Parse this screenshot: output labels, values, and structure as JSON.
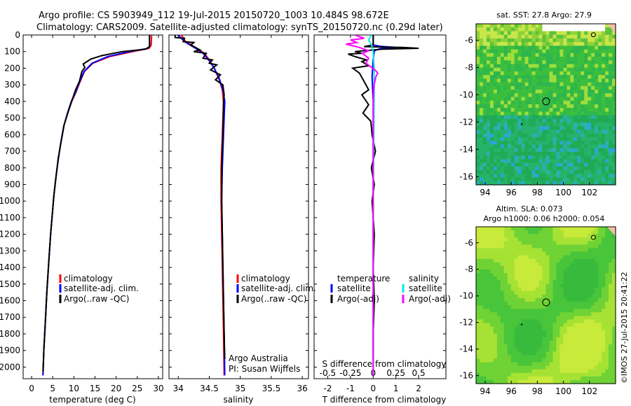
{
  "title_line1": "Argo profile: CS 5903949_112 19-Jul-2015 20150720_1003 10.484S 98.672E",
  "title_line2": "Climatology: CARS2009. Satellite-adjusted climatology: synTS_20150720.nc (0.29d later)",
  "stamp": "©IMOS 27-Jul-2015 20:41:22",
  "colors": {
    "clim": "#ff0000",
    "sat": "#0000ff",
    "argo": "#000000",
    "sal_sat": "#00e5ee",
    "sal_argo": "#ff00ff"
  },
  "chart_data": [
    {
      "type": "line",
      "name": "temperature-profile",
      "xlabel": "temperature (deg C)",
      "ylabel": "",
      "xlim": [
        -2,
        31
      ],
      "ylim": [
        2070,
        0
      ],
      "y_reversed": true,
      "xticks": [
        0,
        5,
        10,
        15,
        20,
        25,
        30
      ],
      "yticks": [
        0,
        100,
        200,
        300,
        400,
        500,
        600,
        700,
        800,
        900,
        1000,
        1100,
        1200,
        1300,
        1400,
        1500,
        1600,
        1700,
        1800,
        1900,
        2000
      ],
      "legend": [
        "climatology",
        "satellite-adj. clim.",
        "Argo(..raw -QC)"
      ],
      "series": [
        {
          "name": "climatology",
          "color": "clim",
          "points": [
            [
              28.4,
              0
            ],
            [
              28.3,
              60
            ],
            [
              27.8,
              80
            ],
            [
              24,
              100
            ],
            [
              18.5,
              130
            ],
            [
              14.5,
              170
            ],
            [
              12.5,
              220
            ],
            [
              11.5,
              280
            ],
            [
              10.4,
              350
            ],
            [
              9.5,
              400
            ],
            [
              8.5,
              470
            ],
            [
              7.6,
              550
            ],
            [
              6.9,
              650
            ],
            [
              6.3,
              750
            ],
            [
              5.8,
              850
            ],
            [
              5.3,
              960
            ],
            [
              4.9,
              1080
            ],
            [
              4.5,
              1200
            ],
            [
              4.1,
              1350
            ],
            [
              3.6,
              1550
            ],
            [
              3.2,
              1750
            ],
            [
              2.9,
              1900
            ],
            [
              2.7,
              2050
            ]
          ]
        },
        {
          "name": "satellite",
          "color": "sat",
          "points": [
            [
              27.9,
              0
            ],
            [
              27.9,
              70
            ],
            [
              27.2,
              82
            ],
            [
              23.2,
              100
            ],
            [
              18,
              130
            ],
            [
              14.3,
              170
            ],
            [
              12.4,
              220
            ],
            [
              11.4,
              280
            ],
            [
              10.3,
              350
            ],
            [
              9.4,
              400
            ],
            [
              8.5,
              470
            ],
            [
              7.6,
              550
            ],
            [
              6.9,
              650
            ],
            [
              6.3,
              750
            ],
            [
              5.8,
              850
            ],
            [
              5.3,
              960
            ],
            [
              4.9,
              1080
            ],
            [
              4.5,
              1200
            ],
            [
              4.1,
              1350
            ],
            [
              3.6,
              1550
            ],
            [
              3.2,
              1750
            ],
            [
              2.9,
              1900
            ],
            [
              2.7,
              2050
            ]
          ]
        },
        {
          "name": "argo",
          "color": "argo",
          "points": [
            [
              27.9,
              0
            ],
            [
              27.9,
              70
            ],
            [
              27,
              85
            ],
            [
              21.5,
              100
            ],
            [
              19,
              112
            ],
            [
              16.5,
              125
            ],
            [
              14,
              145
            ],
            [
              12.2,
              175
            ],
            [
              12.6,
              195
            ],
            [
              11.9,
              220
            ],
            [
              11.3,
              280
            ],
            [
              10.4,
              330
            ],
            [
              9.6,
              390
            ],
            [
              8.7,
              460
            ],
            [
              7.7,
              540
            ],
            [
              7,
              640
            ],
            [
              6.3,
              740
            ],
            [
              5.8,
              850
            ],
            [
              5.3,
              960
            ],
            [
              4.9,
              1080
            ],
            [
              4.5,
              1200
            ],
            [
              4.1,
              1350
            ],
            [
              3.6,
              1550
            ],
            [
              3.2,
              1750
            ],
            [
              2.9,
              1900
            ],
            [
              2.7,
              2030
            ]
          ]
        }
      ]
    },
    {
      "type": "line",
      "name": "salinity-profile",
      "xlabel": "salinity",
      "xlim": [
        33.85,
        36.1
      ],
      "ylim": [
        2070,
        0
      ],
      "xticks": [
        34,
        34.5,
        35,
        35.5,
        36
      ],
      "legend": [
        "climatology",
        "satellite-adj. clim.",
        "Argo(..raw -QC)"
      ],
      "annotation": [
        "Argo Australia",
        "PI: Susan Wijffels"
      ],
      "series": [
        {
          "name": "climatology",
          "color": "clim",
          "points": [
            [
              34.05,
              0
            ],
            [
              34.12,
              40
            ],
            [
              34.3,
              80
            ],
            [
              34.42,
              110
            ],
            [
              34.5,
              150
            ],
            [
              34.58,
              200
            ],
            [
              34.65,
              260
            ],
            [
              34.71,
              330
            ],
            [
              34.73,
              400
            ],
            [
              34.71,
              600
            ],
            [
              34.69,
              800
            ],
            [
              34.69,
              1000
            ],
            [
              34.7,
              1200
            ],
            [
              34.71,
              1400
            ],
            [
              34.72,
              1600
            ],
            [
              34.73,
              1800
            ],
            [
              34.74,
              2050
            ]
          ]
        },
        {
          "name": "satellite",
          "color": "sat",
          "points": [
            [
              34.0,
              0
            ],
            [
              34.1,
              40
            ],
            [
              34.28,
              80
            ],
            [
              34.4,
              110
            ],
            [
              34.49,
              150
            ],
            [
              34.58,
              200
            ],
            [
              34.66,
              260
            ],
            [
              34.72,
              330
            ],
            [
              34.75,
              400
            ],
            [
              34.73,
              600
            ],
            [
              34.71,
              800
            ],
            [
              34.7,
              1000
            ],
            [
              34.71,
              1200
            ],
            [
              34.72,
              1400
            ],
            [
              34.73,
              1600
            ],
            [
              34.74,
              1800
            ],
            [
              34.75,
              2050
            ]
          ]
        },
        {
          "name": "argo",
          "color": "argo",
          "points": [
            [
              33.95,
              0
            ],
            [
              33.95,
              15
            ],
            [
              34.1,
              20
            ],
            [
              34.08,
              40
            ],
            [
              34.25,
              45
            ],
            [
              34.2,
              60
            ],
            [
              34.35,
              90
            ],
            [
              34.25,
              100
            ],
            [
              34.45,
              110
            ],
            [
              34.4,
              140
            ],
            [
              34.55,
              150
            ],
            [
              34.5,
              170
            ],
            [
              34.62,
              180
            ],
            [
              34.52,
              210
            ],
            [
              34.68,
              240
            ],
            [
              34.6,
              270
            ],
            [
              34.72,
              300
            ],
            [
              34.74,
              360
            ],
            [
              34.73,
              400
            ],
            [
              34.72,
              600
            ],
            [
              34.7,
              800
            ],
            [
              34.7,
              1000
            ],
            [
              34.71,
              1200
            ],
            [
              34.72,
              1400
            ],
            [
              34.73,
              1600
            ],
            [
              34.74,
              1800
            ],
            [
              34.75,
              1950
            ]
          ]
        }
      ]
    },
    {
      "type": "line",
      "name": "difference-profile",
      "xlabel": "T difference from climatology",
      "xlabel_top": "S difference from climatology",
      "xlim_T": [
        -2.6,
        3.2
      ],
      "xticks_T": [
        -2,
        -1,
        0,
        1,
        2
      ],
      "xticks_S": [
        -0.5,
        -0.25,
        0,
        0.25,
        0.5
      ],
      "S_scale": 4,
      "legend": {
        "temperature_title": "temperature",
        "salinity_title": "salinity",
        "t_sat": "satellite",
        "t_argo": "Argo(-adj)",
        "s_sat": "satellite",
        "s_argo": "Argo(-adj)"
      },
      "series": [
        {
          "name": "T satellite",
          "color": "sat",
          "points": [
            [
              0,
              0
            ],
            [
              0,
              60
            ],
            [
              0.3,
              68
            ],
            [
              1.0,
              75
            ],
            [
              0.3,
              82
            ],
            [
              0.05,
              95
            ],
            [
              0,
              150
            ],
            [
              -0.05,
              250
            ],
            [
              0,
              400
            ],
            [
              0,
              2050
            ]
          ]
        },
        {
          "name": "T argo",
          "color": "argo",
          "points": [
            [
              0,
              0
            ],
            [
              0,
              60
            ],
            [
              -0.4,
              70
            ],
            [
              1.3,
              75
            ],
            [
              2.0,
              80
            ],
            [
              0.4,
              85
            ],
            [
              -0.8,
              100
            ],
            [
              -0.5,
              110
            ],
            [
              -1.1,
              115
            ],
            [
              -0.8,
              130
            ],
            [
              -0.3,
              150
            ],
            [
              -0.5,
              160
            ],
            [
              -0.2,
              185
            ],
            [
              -0.9,
              200
            ],
            [
              -0.6,
              230
            ],
            [
              -0.4,
              280
            ],
            [
              -0.2,
              330
            ],
            [
              -0.5,
              360
            ],
            [
              -0.2,
              420
            ],
            [
              -0.45,
              470
            ],
            [
              -0.1,
              520
            ],
            [
              -0.05,
              600
            ],
            [
              0.1,
              700
            ],
            [
              -0.08,
              800
            ],
            [
              0.05,
              900
            ],
            [
              -0.05,
              1000
            ],
            [
              0.05,
              1200
            ],
            [
              0,
              1400
            ],
            [
              0.05,
              1600
            ],
            [
              0,
              1800
            ],
            [
              0,
              1950
            ]
          ]
        },
        {
          "name": "S satellite",
          "color": "sal_sat",
          "points": [
            [
              -0.02,
              0
            ],
            [
              -0.05,
              30
            ],
            [
              -0.02,
              60
            ],
            [
              0,
              100
            ],
            [
              0.01,
              200
            ],
            [
              0.01,
              400
            ],
            [
              0,
              1000
            ],
            [
              0,
              2050
            ]
          ]
        },
        {
          "name": "S argo",
          "color": "sal_argo",
          "points": [
            [
              -0.2,
              0
            ],
            [
              -0.1,
              20
            ],
            [
              -0.25,
              30
            ],
            [
              -0.18,
              45
            ],
            [
              -0.3,
              55
            ],
            [
              -0.15,
              75
            ],
            [
              -0.05,
              95
            ],
            [
              -0.12,
              110
            ],
            [
              -0.05,
              140
            ],
            [
              -0.08,
              170
            ],
            [
              0.02,
              210
            ],
            [
              0.05,
              230
            ],
            [
              0.03,
              250
            ],
            [
              0.01,
              300
            ],
            [
              0,
              400
            ],
            [
              0,
              2050
            ]
          ]
        }
      ]
    },
    {
      "type": "heatmap",
      "name": "sst-map",
      "title": "sat. SST: 27.8 Argo: 27.9",
      "xticks": [
        94,
        96,
        98,
        100,
        102
      ],
      "yticks": [
        -6,
        -8,
        -10,
        -12,
        -14,
        -16
      ],
      "xlim": [
        93.3,
        104
      ],
      "ylim": [
        -16.6,
        -4.8
      ]
    },
    {
      "type": "heatmap",
      "name": "sla-map",
      "title_line1": "Altim. SLA: 0.073",
      "title_line2": "Argo h1000: 0.06 h2000: 0.054",
      "xticks": [
        94,
        96,
        98,
        100,
        102
      ],
      "yticks": [
        -6,
        -8,
        -10,
        -12,
        -14,
        -16
      ],
      "xlim": [
        93.3,
        104
      ],
      "ylim": [
        -16.6,
        -4.8
      ]
    }
  ]
}
